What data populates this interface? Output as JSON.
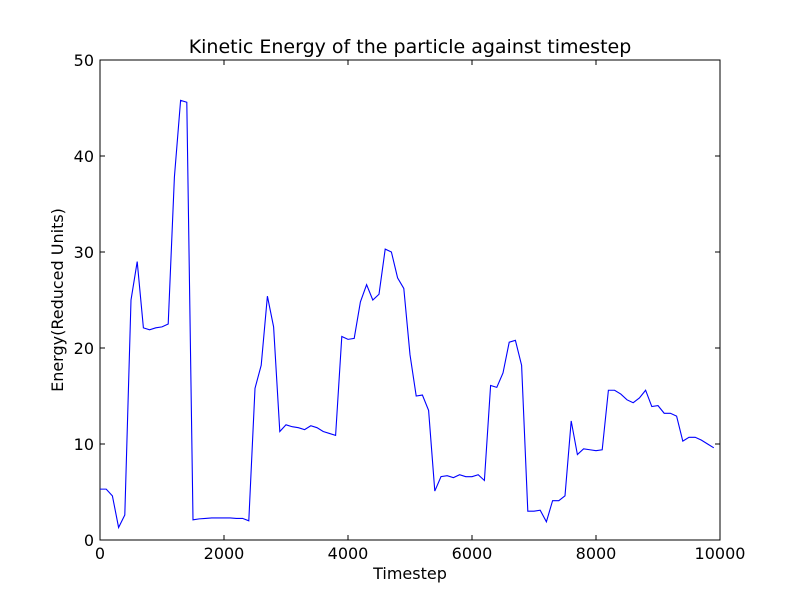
{
  "chart_data": {
    "type": "line",
    "title": "Kinetic Energy of the particle against timestep",
    "xlabel": "Timestep",
    "ylabel": "Energy(Reduced Units)",
    "xlim": [
      0,
      10000
    ],
    "ylim": [
      0,
      50
    ],
    "xticks": [
      0,
      2000,
      4000,
      6000,
      8000,
      10000
    ],
    "yticks": [
      0,
      10,
      20,
      30,
      40,
      50
    ],
    "grid": false,
    "line_color": "#0000ff",
    "series": [
      {
        "x": [
          0,
          100,
          200,
          300,
          400,
          500,
          600,
          700,
          800,
          900,
          1000,
          1100,
          1200,
          1300,
          1400,
          1500,
          1600,
          1700,
          1800,
          1900,
          2000,
          2100,
          2200,
          2300,
          2400,
          2500,
          2600,
          2700,
          2800,
          2900,
          3000,
          3100,
          3200,
          3300,
          3400,
          3500,
          3600,
          3700,
          3800,
          3900,
          4000,
          4100,
          4200,
          4300,
          4400,
          4500,
          4600,
          4700,
          4800,
          4900,
          5000,
          5100,
          5200,
          5300,
          5400,
          5500,
          5600,
          5700,
          5800,
          5900,
          6000,
          6100,
          6200,
          6300,
          6400,
          6500,
          6600,
          6700,
          6800,
          6900,
          7000,
          7100,
          7200,
          7300,
          7400,
          7500,
          7600,
          7700,
          7800,
          7900,
          8000,
          8100,
          8200,
          8300,
          8400,
          8500,
          8600,
          8700,
          8800,
          8900,
          9000,
          9100,
          9200,
          9300,
          9400,
          9500,
          9600,
          9700,
          9800,
          9900
        ],
        "values": [
          5.3,
          5.3,
          4.6,
          1.3,
          2.6,
          25.0,
          29.0,
          22.1,
          21.9,
          22.1,
          22.2,
          22.5,
          37.8,
          45.8,
          45.6,
          2.1,
          2.2,
          2.25,
          2.3,
          2.3,
          2.3,
          2.3,
          2.25,
          2.25,
          2.0,
          15.8,
          18.2,
          25.4,
          22.2,
          11.3,
          12.0,
          11.8,
          11.7,
          11.5,
          11.9,
          11.7,
          11.3,
          11.1,
          10.9,
          21.2,
          20.9,
          21.0,
          24.8,
          26.6,
          25.0,
          25.6,
          30.3,
          30.0,
          27.3,
          26.2,
          19.3,
          15.0,
          15.1,
          13.5,
          5.1,
          6.6,
          6.7,
          6.5,
          6.8,
          6.6,
          6.6,
          6.8,
          6.2,
          16.1,
          15.9,
          17.4,
          20.6,
          20.8,
          18.2,
          3.0,
          3.0,
          3.1,
          1.9,
          4.1,
          4.1,
          4.6,
          12.4,
          8.9,
          9.5,
          9.4,
          9.3,
          9.4,
          15.6,
          15.6,
          15.2,
          14.6,
          14.3,
          14.8,
          15.6,
          13.9,
          14.0,
          13.2,
          13.2,
          12.9,
          10.3,
          10.7,
          10.7,
          10.4,
          10.0,
          9.6
        ]
      }
    ]
  }
}
